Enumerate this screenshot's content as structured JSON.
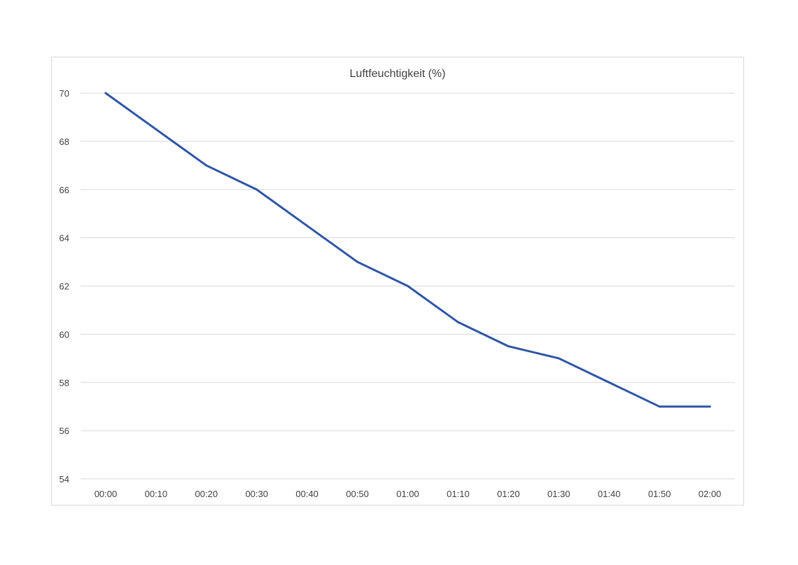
{
  "chart_data": {
    "type": "line",
    "title": "Luftfeuchtigkeit (%)",
    "xlabel": "",
    "ylabel": "",
    "categories": [
      "00:00",
      "00:10",
      "00:20",
      "00:30",
      "00:40",
      "00:50",
      "01:00",
      "01:10",
      "01:20",
      "01:30",
      "01:40",
      "01:50",
      "02:00"
    ],
    "series": [
      {
        "values": [
          70,
          68.5,
          67,
          66,
          64.5,
          63,
          62,
          60.5,
          59.5,
          59,
          58,
          57,
          57
        ],
        "color": "#2f55a4"
      }
    ],
    "ylim": [
      54,
      70
    ],
    "yticks": [
      "54",
      "56",
      "58",
      "60",
      "62",
      "64",
      "66",
      "68",
      "70"
    ],
    "grid": true,
    "legend": "none"
  }
}
